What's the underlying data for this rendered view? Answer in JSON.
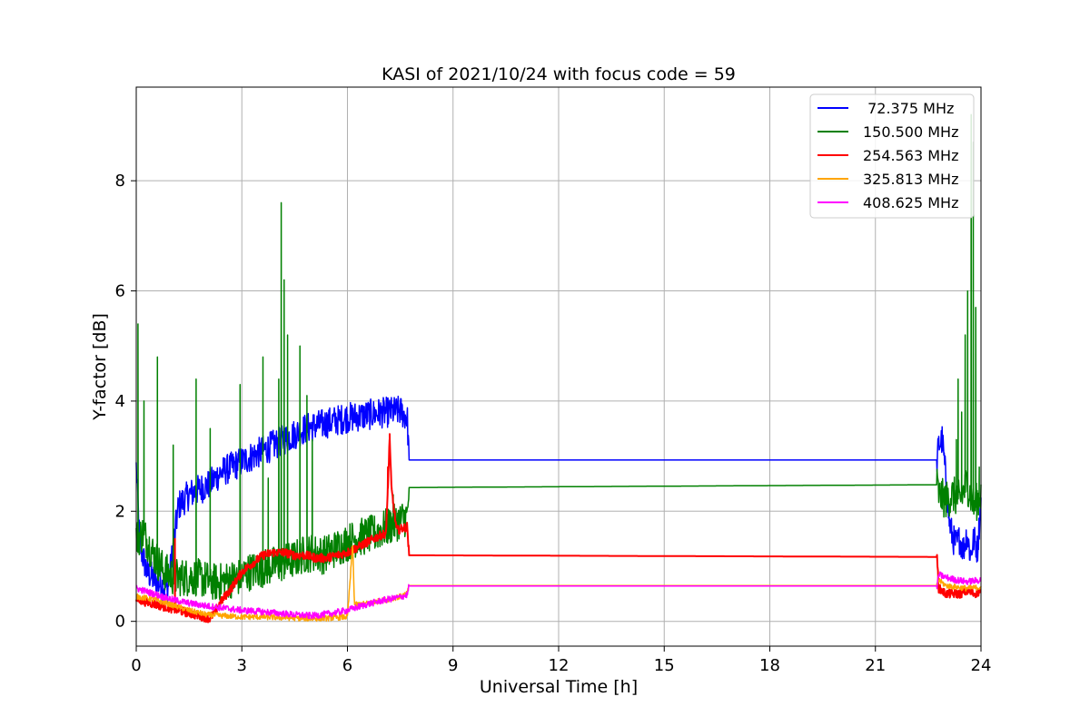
{
  "chart_data": {
    "type": "line",
    "title": "KASI of 2021/10/24 with focus code = 59",
    "xlabel": "Universal Time [h]",
    "ylabel": "Y-factor [dB]",
    "xlim": [
      0,
      24
    ],
    "ylim": [
      -0.45,
      9.7
    ],
    "xticks": [
      0,
      3,
      6,
      9,
      12,
      15,
      18,
      21,
      24
    ],
    "yticks": [
      0,
      2,
      4,
      6,
      8
    ],
    "grid": true,
    "legend_position": "top-right",
    "series": [
      {
        "name": " 72.375 MHz",
        "color": "#0000ff",
        "x": [
          0,
          0.1,
          0.3,
          0.6,
          0.9,
          1.2,
          1.5,
          1.8,
          2.1,
          2.4,
          2.7,
          3.0,
          3.3,
          3.6,
          3.9,
          4.2,
          4.5,
          4.8,
          5.1,
          5.4,
          5.7,
          6.0,
          6.3,
          6.6,
          6.9,
          7.2,
          7.5,
          7.7,
          7.75,
          22.75,
          22.8,
          22.9,
          23.0,
          23.1,
          23.2,
          23.3,
          23.4,
          23.5,
          23.6,
          23.7,
          23.8,
          23.9,
          24.0
        ],
        "y": [
          2.8,
          1.4,
          0.9,
          0.7,
          0.6,
          2.1,
          2.3,
          2.4,
          2.5,
          2.7,
          2.8,
          2.9,
          3.0,
          3.1,
          3.2,
          3.3,
          3.4,
          3.5,
          3.55,
          3.6,
          3.65,
          3.7,
          3.72,
          3.75,
          3.78,
          3.8,
          3.82,
          3.7,
          2.93,
          2.93,
          3.2,
          3.3,
          2.6,
          1.8,
          1.5,
          1.4,
          1.5,
          1.3,
          1.6,
          1.2,
          1.5,
          1.3,
          2.2
        ],
        "noise": 0.28
      },
      {
        "name": "150.500 MHz",
        "color": "#008000",
        "x": [
          0,
          0.2,
          0.5,
          0.8,
          1.1,
          1.4,
          1.7,
          2.0,
          2.3,
          2.6,
          2.9,
          3.2,
          3.5,
          3.8,
          4.1,
          4.4,
          4.7,
          5.0,
          5.3,
          5.6,
          5.9,
          6.2,
          6.5,
          6.8,
          7.1,
          7.4,
          7.7,
          7.75,
          22.75,
          22.8,
          23.0,
          23.2,
          23.4,
          23.6,
          23.8,
          24.0
        ],
        "y": [
          1.5,
          1.6,
          1.2,
          0.9,
          0.8,
          0.8,
          0.8,
          0.75,
          0.7,
          0.75,
          0.8,
          0.9,
          0.95,
          1.0,
          1.05,
          1.1,
          1.2,
          1.25,
          1.2,
          1.3,
          1.4,
          1.5,
          1.55,
          1.6,
          1.7,
          1.8,
          1.9,
          2.43,
          2.48,
          2.3,
          2.2,
          2.3,
          2.2,
          2.5,
          2.1,
          2.3
        ],
        "noise": 0.35,
        "spikes": [
          [
            0.05,
            5.4
          ],
          [
            0.22,
            4.0
          ],
          [
            0.6,
            4.8
          ],
          [
            1.05,
            3.2
          ],
          [
            1.7,
            4.4
          ],
          [
            2.1,
            3.5
          ],
          [
            2.95,
            4.3
          ],
          [
            3.6,
            4.8
          ],
          [
            3.75,
            2.6
          ],
          [
            4.05,
            4.4
          ],
          [
            4.12,
            7.6
          ],
          [
            4.2,
            6.2
          ],
          [
            4.3,
            5.2
          ],
          [
            4.65,
            5.0
          ],
          [
            4.85,
            4.1
          ],
          [
            5.0,
            3.3
          ],
          [
            7.3,
            2.3
          ],
          [
            23.3,
            3.3
          ],
          [
            23.35,
            4.4
          ],
          [
            23.45,
            3.8
          ],
          [
            23.55,
            5.2
          ],
          [
            23.62,
            6.0
          ],
          [
            23.72,
            9.2
          ],
          [
            23.78,
            8.7
          ],
          [
            23.85,
            5.7
          ],
          [
            23.95,
            2.8
          ]
        ]
      },
      {
        "name": "254.563 MHz",
        "color": "#ff0000",
        "x": [
          0,
          0.3,
          0.6,
          0.9,
          1.2,
          1.5,
          1.8,
          2.1,
          2.4,
          2.7,
          3.0,
          3.3,
          3.6,
          3.9,
          4.2,
          4.5,
          4.8,
          5.1,
          5.4,
          5.7,
          6.0,
          6.3,
          6.6,
          6.9,
          7.1,
          7.2,
          7.25,
          7.4,
          7.7,
          7.75,
          22.75,
          22.8,
          23.0,
          23.2,
          23.4,
          23.6,
          23.8,
          24.0
        ],
        "y": [
          0.4,
          0.35,
          0.3,
          0.25,
          0.2,
          0.15,
          0.1,
          0.05,
          0.35,
          0.6,
          0.9,
          1.05,
          1.2,
          1.25,
          1.25,
          1.2,
          1.2,
          1.15,
          1.15,
          1.2,
          1.25,
          1.35,
          1.45,
          1.55,
          1.6,
          3.3,
          2.4,
          1.65,
          1.72,
          1.2,
          1.17,
          0.6,
          0.5,
          0.5,
          0.5,
          0.55,
          0.5,
          0.55
        ],
        "noise": 0.08,
        "spikes": [
          [
            1.1,
            1.5
          ],
          [
            7.2,
            3.4
          ],
          [
            7.15,
            2.8
          ]
        ]
      },
      {
        "name": "325.813 MHz",
        "color": "#ffa500",
        "x": [
          0,
          0.5,
          1.0,
          1.5,
          2.0,
          2.5,
          3.0,
          3.5,
          4.0,
          4.5,
          5.0,
          5.5,
          6.0,
          6.15,
          6.2,
          6.5,
          7.0,
          7.5,
          7.7,
          7.75,
          22.75,
          22.8,
          23.0,
          23.3,
          23.6,
          24.0
        ],
        "y": [
          0.45,
          0.4,
          0.3,
          0.2,
          0.12,
          0.1,
          0.08,
          0.08,
          0.07,
          0.06,
          0.05,
          0.06,
          0.08,
          1.4,
          0.3,
          0.32,
          0.38,
          0.45,
          0.5,
          0.65,
          0.65,
          0.75,
          0.65,
          0.62,
          0.6,
          0.62
        ],
        "noise": 0.05
      },
      {
        "name": "408.625 MHz",
        "color": "#ff00ff",
        "x": [
          0,
          0.5,
          1.0,
          1.5,
          2.0,
          2.5,
          3.0,
          3.5,
          4.0,
          4.5,
          5.0,
          5.5,
          6.0,
          6.5,
          7.0,
          7.5,
          7.7,
          7.75,
          22.75,
          22.8,
          23.0,
          23.3,
          23.6,
          24.0
        ],
        "y": [
          0.6,
          0.5,
          0.4,
          0.33,
          0.28,
          0.24,
          0.2,
          0.18,
          0.15,
          0.12,
          0.1,
          0.14,
          0.2,
          0.3,
          0.38,
          0.44,
          0.48,
          0.64,
          0.64,
          0.85,
          0.8,
          0.75,
          0.72,
          0.75
        ],
        "noise": 0.06
      }
    ]
  }
}
